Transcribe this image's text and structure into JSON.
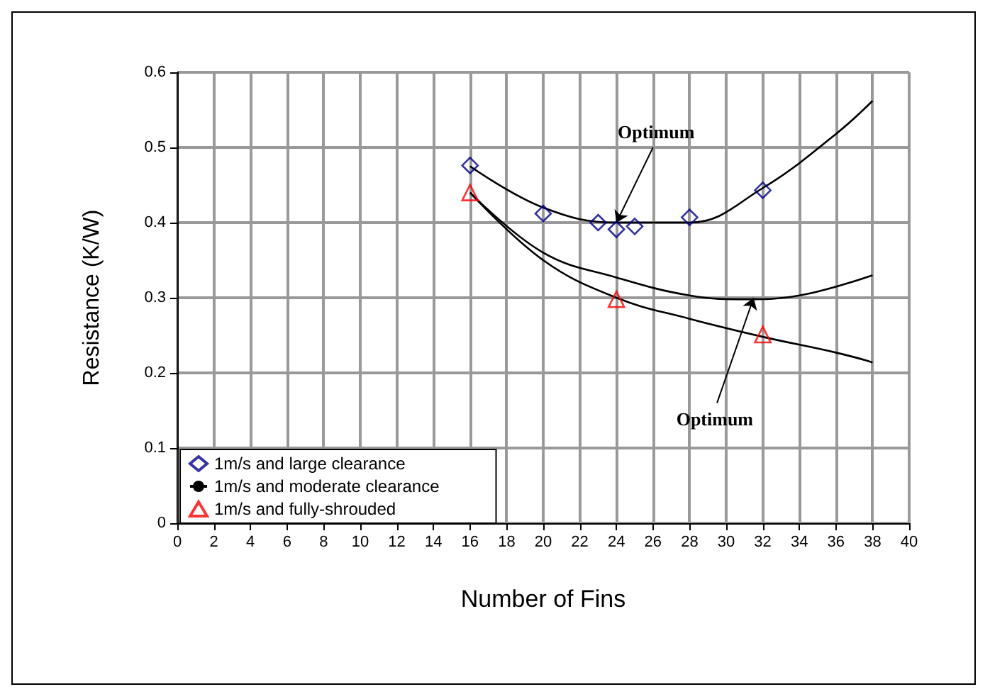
{
  "chart_data": {
    "type": "scatter",
    "xlabel": "Number of Fins",
    "ylabel": "Resistance (K/W)",
    "xlim": [
      0,
      40
    ],
    "xticks": [
      0,
      2,
      4,
      6,
      8,
      10,
      12,
      14,
      16,
      18,
      20,
      22,
      24,
      26,
      28,
      30,
      32,
      34,
      36,
      38,
      40
    ],
    "ylim": [
      0,
      0.6
    ],
    "yticks": [
      0,
      0.1,
      0.2,
      0.3,
      0.4,
      0.5,
      0.6
    ],
    "grid": true,
    "legend": "bottom left",
    "series": [
      {
        "name": "1m/s and large clearance",
        "marker": "diamond",
        "color": "#00008b",
        "x": [
          16,
          20,
          23,
          24,
          25,
          28,
          32
        ],
        "values": [
          0.476,
          0.412,
          0.4,
          0.391,
          0.395,
          0.407,
          0.443
        ]
      },
      {
        "name": "1m/s and moderate clearance",
        "type": "line",
        "marker": "none",
        "color": "#000000",
        "x": [
          16,
          20,
          24,
          28,
          31,
          34,
          38
        ],
        "values": [
          0.44,
          0.36,
          0.327,
          0.303,
          0.298,
          0.303,
          0.33
        ]
      },
      {
        "name": "1m/s and fully-shrouded",
        "marker": "triangle",
        "color": "#ff0000",
        "x": [
          16,
          24,
          32
        ],
        "values": [
          0.44,
          0.298,
          0.251
        ]
      },
      {
        "type": "line",
        "marker": "none",
        "color": "#000000",
        "x": [
          16,
          20,
          24,
          28,
          32,
          36,
          38
        ],
        "values": [
          0.475,
          0.42,
          0.4,
          0.4,
          0.446,
          0.518,
          0.562
        ]
      },
      {
        "type": "line",
        "marker": "none",
        "color": "#000000",
        "x": [
          16,
          20,
          24,
          28,
          32,
          36,
          38
        ],
        "values": [
          0.44,
          0.35,
          0.3,
          0.272,
          0.248,
          0.227,
          0.214
        ]
      }
    ],
    "annotations": [
      {
        "text": "Optimum",
        "x": 24,
        "y": 0.4
      },
      {
        "text": "Optimum",
        "x": 31.5,
        "y": 0.3
      }
    ]
  }
}
